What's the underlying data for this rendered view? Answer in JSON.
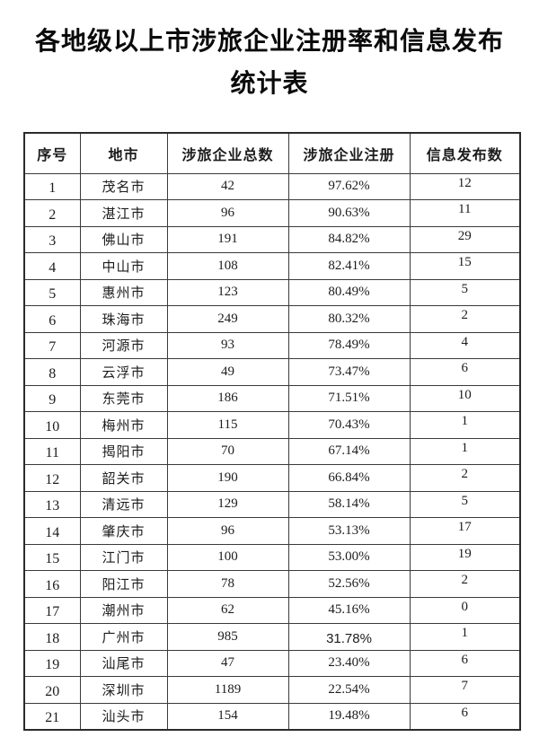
{
  "title": {
    "line1": "各地级以上市涉旅企业注册率和信息发布",
    "line2": "统计表"
  },
  "table": {
    "columns": [
      "序号",
      "地市",
      "涉旅企业总数",
      "涉旅企业注册",
      "信息发布数"
    ],
    "rows": [
      {
        "no": "1",
        "city": "茂名市",
        "total": "42",
        "rate": "97.62%",
        "info": "12"
      },
      {
        "no": "2",
        "city": "湛江市",
        "total": "96",
        "rate": "90.63%",
        "info": "11"
      },
      {
        "no": "3",
        "city": "佛山市",
        "total": "191",
        "rate": "84.82%",
        "info": "29"
      },
      {
        "no": "4",
        "city": "中山市",
        "total": "108",
        "rate": "82.41%",
        "info": "15"
      },
      {
        "no": "5",
        "city": "惠州市",
        "total": "123",
        "rate": "80.49%",
        "info": "5"
      },
      {
        "no": "6",
        "city": "珠海市",
        "total": "249",
        "rate": "80.32%",
        "info": "2"
      },
      {
        "no": "7",
        "city": "河源市",
        "total": "93",
        "rate": "78.49%",
        "info": "4"
      },
      {
        "no": "8",
        "city": "云浮市",
        "total": "49",
        "rate": "73.47%",
        "info": "6"
      },
      {
        "no": "9",
        "city": "东莞市",
        "total": "186",
        "rate": "71.51%",
        "info": "10"
      },
      {
        "no": "10",
        "city": "梅州市",
        "total": "115",
        "rate": "70.43%",
        "info": "1"
      },
      {
        "no": "11",
        "city": "揭阳市",
        "total": "70",
        "rate": "67.14%",
        "info": "1"
      },
      {
        "no": "12",
        "city": "韶关市",
        "total": "190",
        "rate": "66.84%",
        "info": "2"
      },
      {
        "no": "13",
        "city": "清远市",
        "total": "129",
        "rate": "58.14%",
        "info": "5"
      },
      {
        "no": "14",
        "city": "肇庆市",
        "total": "96",
        "rate": "53.13%",
        "info": "17"
      },
      {
        "no": "15",
        "city": "江门市",
        "total": "100",
        "rate": "53.00%",
        "info": "19"
      },
      {
        "no": "16",
        "city": "阳江市",
        "total": "78",
        "rate": "52.56%",
        "info": "2"
      },
      {
        "no": "17",
        "city": "潮州市",
        "total": "62",
        "rate": "45.16%",
        "info": "0"
      },
      {
        "no": "18",
        "city": "广州市",
        "total": "985",
        "rate": "31.78%",
        "info": "1"
      },
      {
        "no": "19",
        "city": "汕尾市",
        "total": "47",
        "rate": "23.40%",
        "info": "6"
      },
      {
        "no": "20",
        "city": "深圳市",
        "total": "1189",
        "rate": "22.54%",
        "info": "7"
      },
      {
        "no": "21",
        "city": "汕头市",
        "total": "154",
        "rate": "19.48%",
        "info": "6"
      }
    ]
  }
}
